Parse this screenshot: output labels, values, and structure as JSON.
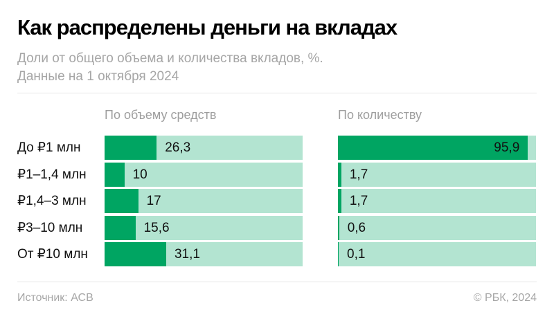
{
  "header": {
    "title": "Как распределены деньги на вкладах",
    "subtitle_line1": "Доли от общего объема и количества вкладов, %.",
    "subtitle_line2": "Данные на 1 октября 2024"
  },
  "columns": {
    "volume_title": "По объему средств",
    "count_title": "По количеству"
  },
  "rows": [
    {
      "label": "До ₽1 млн",
      "volume": "26,3",
      "count": "95,9"
    },
    {
      "label": "₽1–1,4 млн",
      "volume": "10",
      "count": "1,7"
    },
    {
      "label": "₽1,4–3 млн",
      "volume": "17",
      "count": "1,7"
    },
    {
      "label": "₽3–10 млн",
      "volume": "15,6",
      "count": "0,6"
    },
    {
      "label": "От ₽10 млн",
      "volume": "31,1",
      "count": "0,1"
    }
  ],
  "footer": {
    "source": "Источник: АСВ",
    "copyright": "© РБК, 2024"
  },
  "colors": {
    "bar_fill": "#00a562",
    "bar_background": "#b3e4d1"
  },
  "chart_data": [
    {
      "type": "bar",
      "orientation": "horizontal",
      "title": "По объему средств",
      "categories": [
        "До ₽1 млн",
        "₽1–1,4 млн",
        "₽1,4–3 млн",
        "₽3–10 млн",
        "От ₽10 млн"
      ],
      "values": [
        26.3,
        10,
        17,
        15.6,
        31.1
      ],
      "xlim": [
        0,
        100
      ],
      "unit": "%"
    },
    {
      "type": "bar",
      "orientation": "horizontal",
      "title": "По количеству",
      "categories": [
        "До ₽1 млн",
        "₽1–1,4 млн",
        "₽1,4–3 млн",
        "₽3–10 млн",
        "От ₽10 млн"
      ],
      "values": [
        95.9,
        1.7,
        1.7,
        0.6,
        0.1
      ],
      "xlim": [
        0,
        100
      ],
      "unit": "%"
    }
  ]
}
